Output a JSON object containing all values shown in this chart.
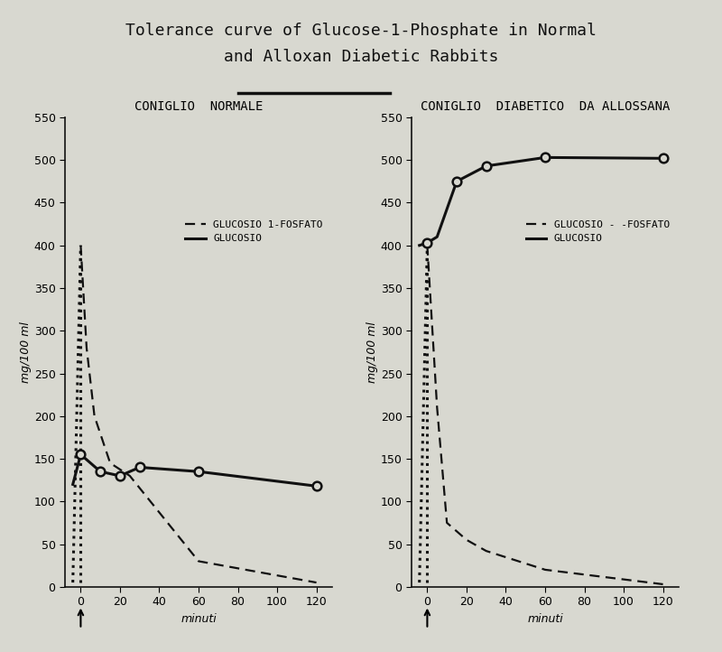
{
  "title_line1": "Tolerance curve of Glucose-1-Phosphate in Normal",
  "title_line2": "and Alloxan Diabetic Rabbits",
  "left_title": "CONIGLIO  NORMALE",
  "right_title": "CONIGLIO  DIABETICO  DA ALLOSSANA",
  "ylabel": "mg/100 ml",
  "xlabel": "minuti",
  "ylim": [
    0,
    550
  ],
  "yticks": [
    0,
    50,
    100,
    150,
    200,
    250,
    300,
    350,
    400,
    450,
    500,
    550
  ],
  "xticks": [
    0,
    20,
    40,
    60,
    80,
    100,
    120
  ],
  "xlim": [
    -8,
    128
  ],
  "left_g1p_x": [
    -4,
    0,
    3,
    7,
    15,
    25,
    60,
    120
  ],
  "left_g1p_y": [
    5,
    400,
    280,
    200,
    145,
    130,
    30,
    5
  ],
  "left_gluc_x": [
    -4,
    0,
    10,
    20,
    30,
    60,
    120
  ],
  "left_gluc_y": [
    120,
    155,
    135,
    130,
    140,
    135,
    118
  ],
  "left_gluc_mk_x": [
    0,
    10,
    20,
    30,
    60,
    120
  ],
  "left_gluc_mk_y": [
    155,
    135,
    130,
    140,
    135,
    118
  ],
  "right_g1p_x": [
    -4,
    0,
    5,
    10,
    20,
    30,
    60,
    120
  ],
  "right_g1p_y": [
    5,
    400,
    210,
    75,
    55,
    42,
    20,
    3
  ],
  "right_gluc_x": [
    -4,
    0,
    5,
    15,
    30,
    60,
    120
  ],
  "right_gluc_y": [
    400,
    403,
    410,
    475,
    493,
    503,
    502
  ],
  "right_gluc_mk_x": [
    0,
    15,
    30,
    60,
    120
  ],
  "right_gluc_mk_y": [
    403,
    475,
    493,
    503,
    502
  ],
  "legend_g1p_left": "GLUCOSIO 1-FOSFATO",
  "legend_gluc_left": "GLUCOSIO",
  "legend_g1p_right": "GLUCOSIO - -FOSFATO",
  "legend_gluc_right": "GLUCOSIO",
  "bg_color": "#d8d8d0",
  "plot_bg": "#d8d8d0",
  "line_color": "#111111",
  "underline_x1": 0.33,
  "underline_x2": 0.54,
  "underline_y": 0.858
}
